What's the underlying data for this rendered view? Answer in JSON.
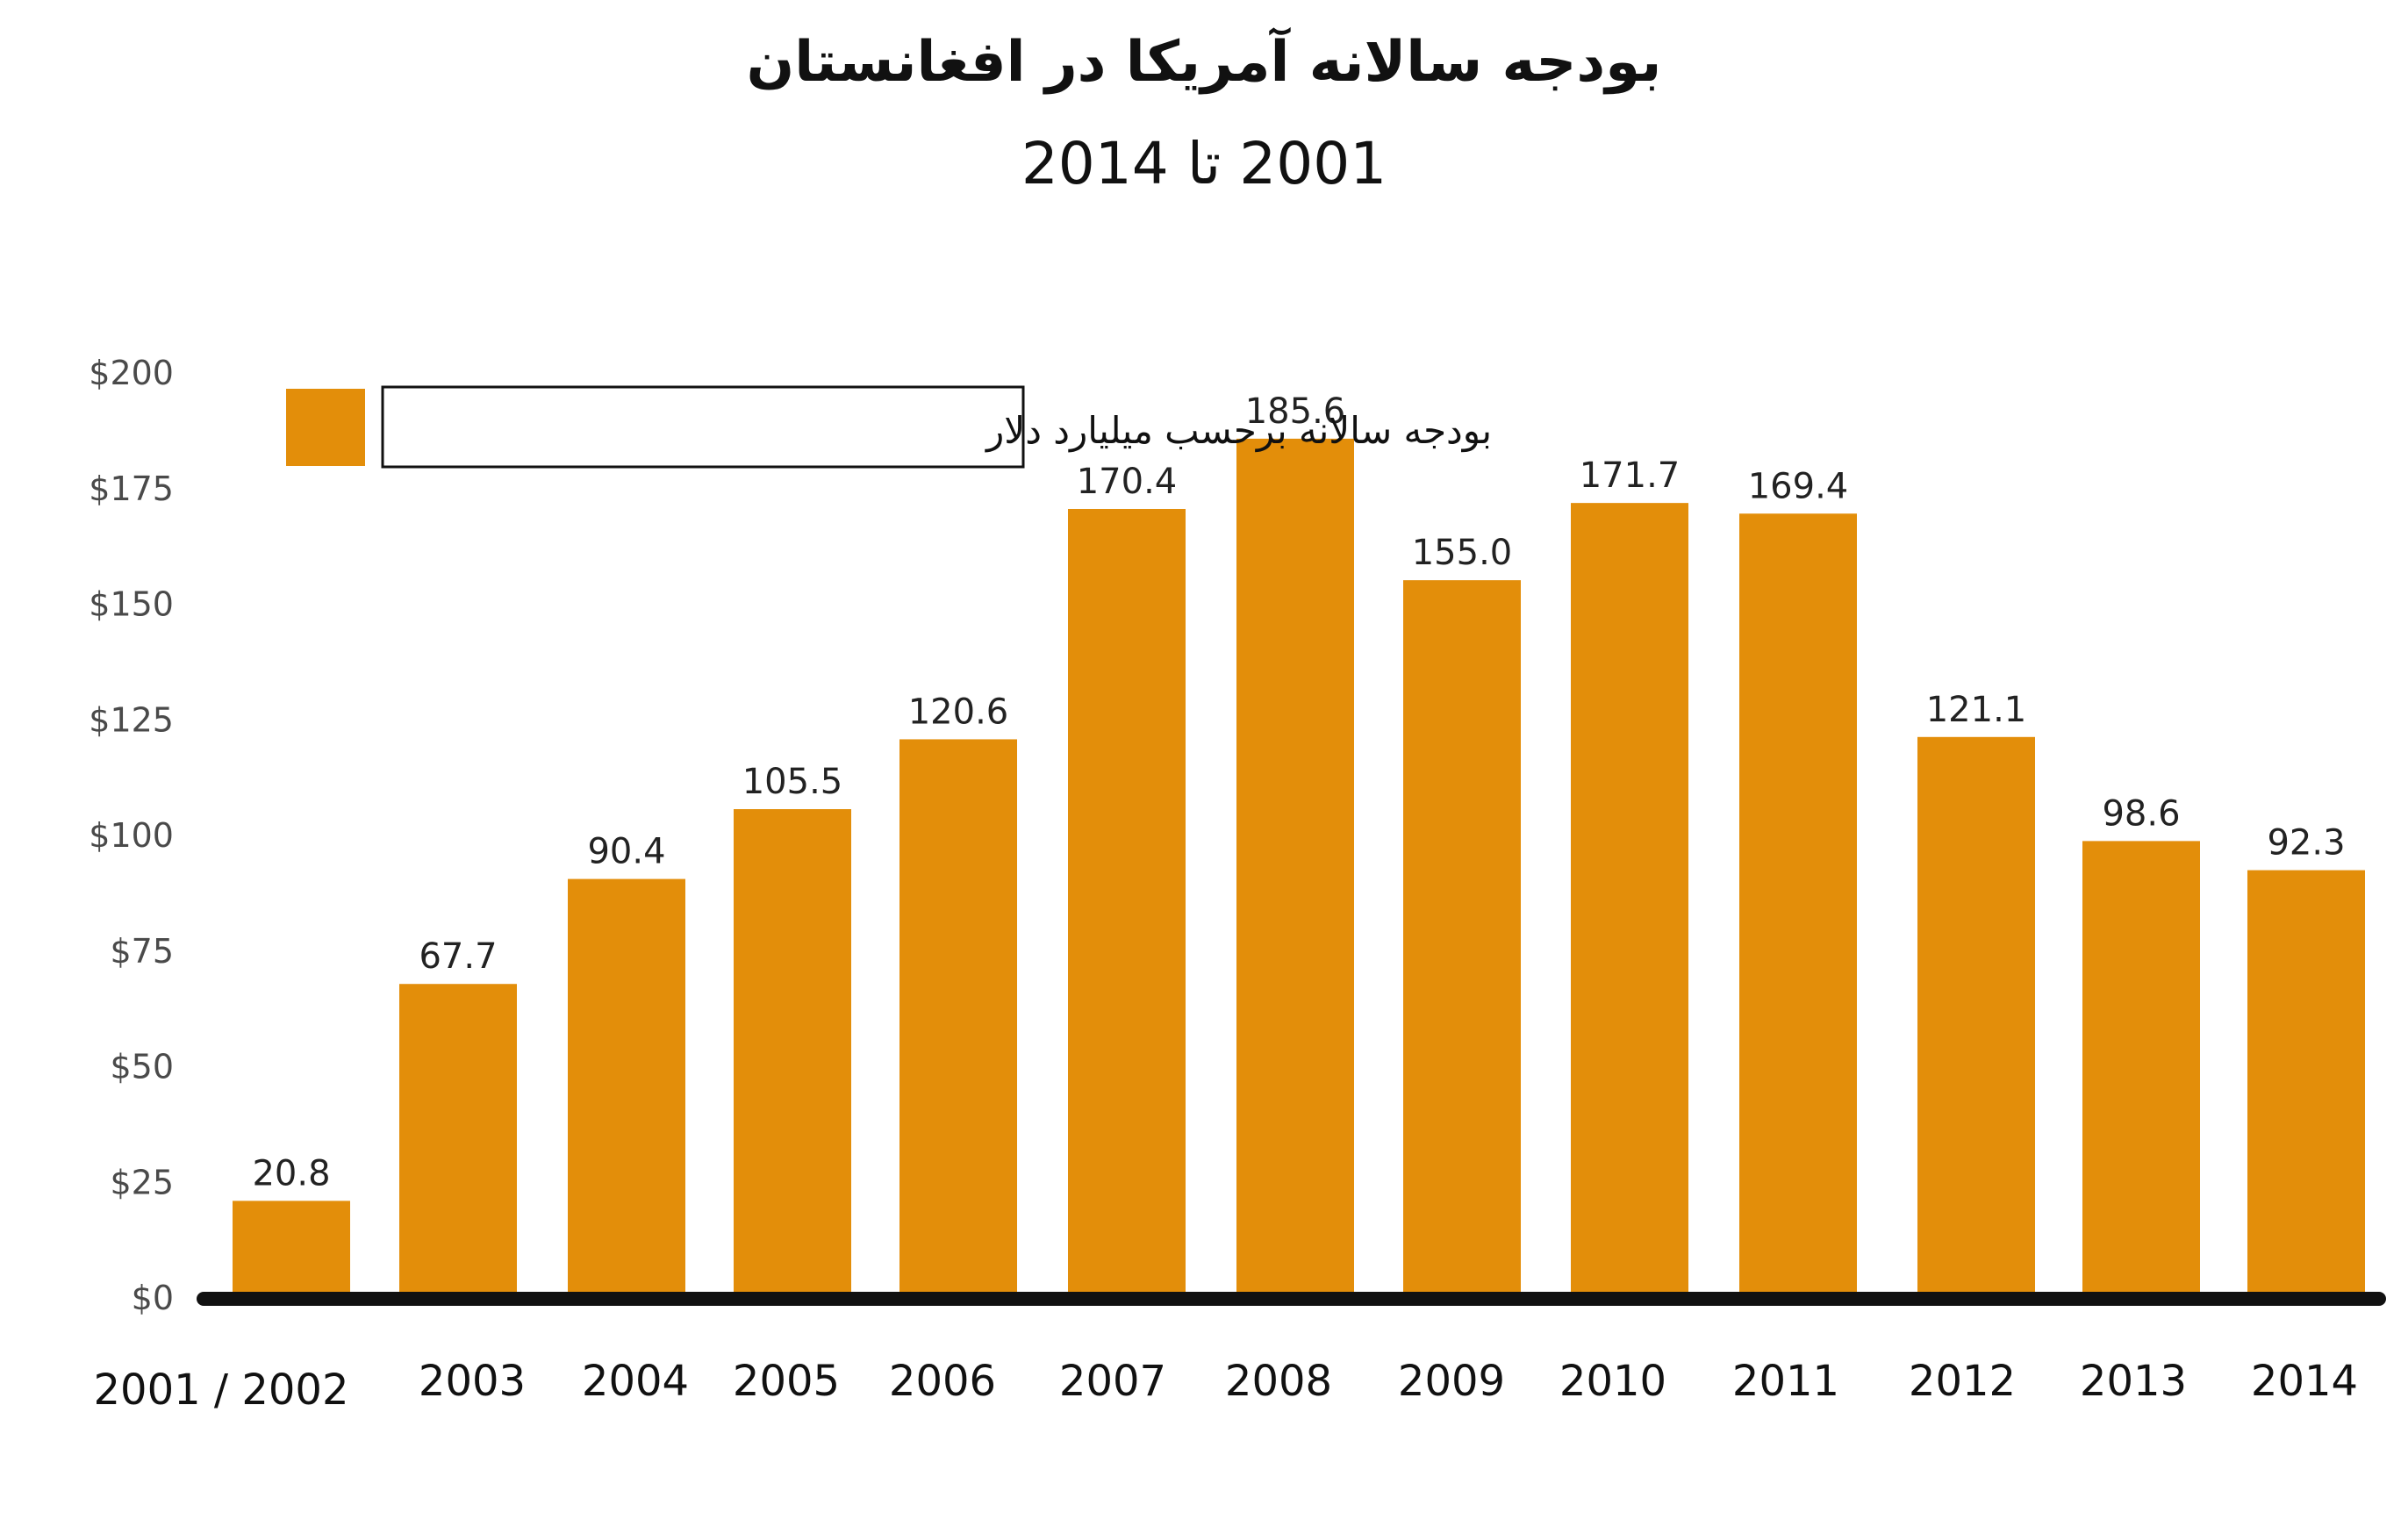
{
  "title": "بودجه سالانه آمریکا در افغانستان",
  "subtitle": "2001 تا 2014",
  "colors": {
    "bar": "#E38E0A",
    "axis": "#111111",
    "tick_text": "#4A4A4A"
  },
  "chart_data": {
    "type": "bar",
    "title": "بودجه سالانه آمریکا در افغانستان",
    "subtitle": "2001 تا 2014",
    "categories": [
      "2001 /  2002",
      "2003",
      "2004",
      "2005",
      "2006",
      "2007",
      "2008",
      "2009",
      "2010",
      "2011",
      "2012",
      "2013",
      "2014"
    ],
    "series": [
      {
        "name": "بودجه سالانه برحسب میلیارد دلار",
        "values": [
          20.8,
          67.7,
          90.4,
          105.5,
          120.6,
          170.4,
          185.6,
          155.0,
          171.7,
          169.4,
          121.1,
          98.6,
          92.3
        ]
      }
    ],
    "data_labels": [
      "20.8",
      "67.7",
      "90.4",
      "105.5",
      "120.6",
      "170.4",
      "185.6",
      "155.0",
      "171.7",
      "169.4",
      "121.1",
      "98.6",
      "92.3"
    ],
    "yticks": [
      "$0",
      "$25",
      "$50",
      "$75",
      "$100",
      "$125",
      "$150",
      "$175",
      "$200"
    ],
    "ylim": [
      0,
      200
    ],
    "grid": false,
    "legend": "top-left"
  }
}
